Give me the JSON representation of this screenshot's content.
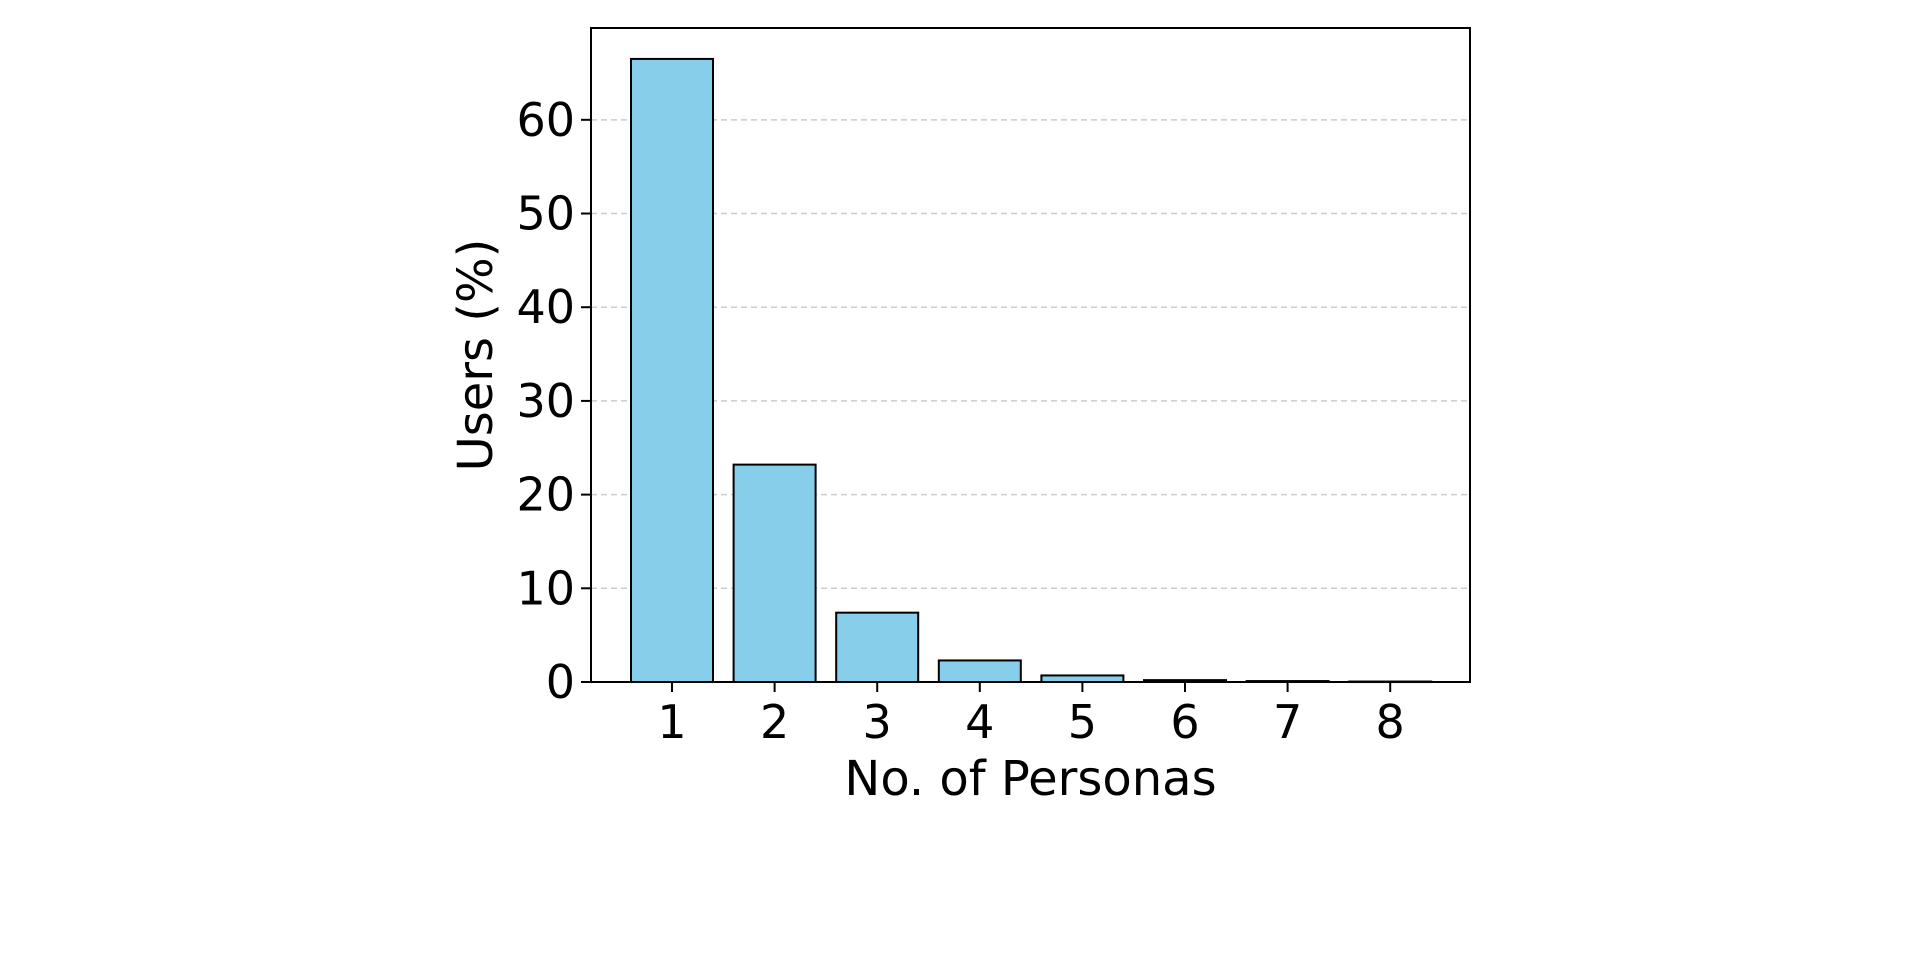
{
  "chart_data": {
    "type": "bar",
    "title": "",
    "xlabel": "No. of Personas",
    "ylabel": "Users (%)",
    "categories": [
      "1",
      "2",
      "3",
      "4",
      "5",
      "6",
      "7",
      "8"
    ],
    "values": [
      66.5,
      23.2,
      7.4,
      2.3,
      0.7,
      0.2,
      0.1,
      0.05
    ],
    "ylim": [
      0,
      69.8
    ],
    "yticks": [
      0,
      10,
      20,
      30,
      40,
      50,
      60
    ],
    "ytick_labels": [
      "0",
      "10",
      "20",
      "30",
      "40",
      "50",
      "60"
    ],
    "grid": "y-dashed",
    "legend": "none",
    "colors": {
      "bar_fill": "#87CEEB",
      "bar_edge": "#000000",
      "grid": "#cccccc",
      "axes": "#000000"
    }
  }
}
